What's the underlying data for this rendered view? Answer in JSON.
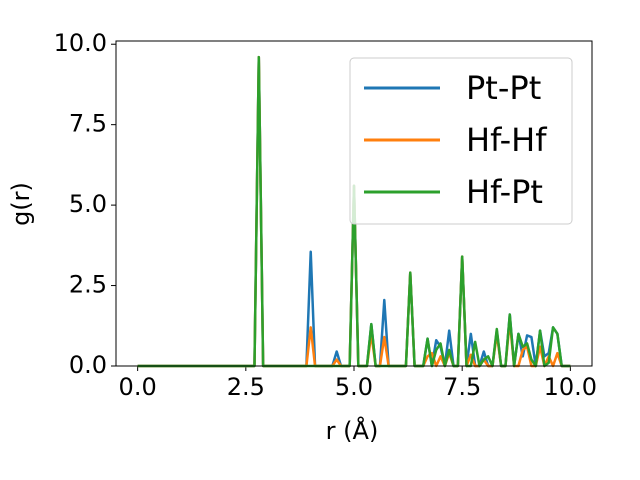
{
  "chart_data": {
    "type": "line",
    "xlabel": "r (Å)",
    "ylabel": "g(r)",
    "x": [
      0,
      0.1,
      0.2,
      0.3,
      0.4,
      0.5,
      0.6,
      0.7,
      0.8,
      0.9,
      1,
      1.1,
      1.2,
      1.3,
      1.4,
      1.5,
      1.6,
      1.7,
      1.8,
      1.9,
      2,
      2.1,
      2.2,
      2.3,
      2.4,
      2.5,
      2.6,
      2.7,
      2.8,
      2.9,
      3,
      3.1,
      3.2,
      3.3,
      3.4,
      3.5,
      3.6,
      3.7,
      3.8,
      3.9,
      4,
      4.1,
      4.2,
      4.3,
      4.4,
      4.5,
      4.6,
      4.7,
      4.8,
      4.9,
      5,
      5.1,
      5.2,
      5.3,
      5.4,
      5.5,
      5.6,
      5.7,
      5.8,
      5.9,
      6,
      6.1,
      6.2,
      6.3,
      6.4,
      6.5,
      6.6,
      6.7,
      6.8,
      6.9,
      7,
      7.1,
      7.2,
      7.3,
      7.4,
      7.5,
      7.6,
      7.7,
      7.8,
      7.9,
      8,
      8.1,
      8.2,
      8.3,
      8.4,
      8.5,
      8.6,
      8.7,
      8.8,
      8.9,
      9,
      9.1,
      9.2,
      9.3,
      9.4,
      9.5,
      9.6,
      9.7,
      9.8,
      9.9,
      10
    ],
    "series": [
      {
        "name": "Pt-Pt",
        "color": "#1f77b4",
        "values": [
          0,
          0,
          0,
          0,
          0,
          0,
          0,
          0,
          0,
          0,
          0,
          0,
          0,
          0,
          0,
          0,
          0,
          0,
          0,
          0,
          0,
          0,
          0,
          0,
          0,
          0,
          0,
          0,
          9.6,
          0,
          0,
          0,
          0,
          0,
          0,
          0,
          0,
          0,
          0,
          0,
          3.55,
          0,
          0,
          0,
          0,
          0,
          0.45,
          0,
          0,
          0,
          5.6,
          0,
          0,
          0,
          1.3,
          0,
          0,
          2.05,
          0,
          0,
          0,
          0,
          0,
          2.9,
          0,
          0,
          0,
          0.85,
          0,
          0.8,
          0.6,
          0,
          1.1,
          0,
          0,
          3.4,
          0,
          1.0,
          0,
          0,
          0.45,
          0,
          0,
          1.1,
          0,
          0,
          1.6,
          0,
          1.0,
          0.3,
          0.95,
          0.9,
          0,
          1.1,
          0.3,
          0.4,
          1.2,
          1.0,
          0,
          0,
          0
        ]
      },
      {
        "name": "Hf-Hf",
        "color": "#ff7f0e",
        "values": [
          0,
          0,
          0,
          0,
          0,
          0,
          0,
          0,
          0,
          0,
          0,
          0,
          0,
          0,
          0,
          0,
          0,
          0,
          0,
          0,
          0,
          0,
          0,
          0,
          0,
          0,
          0,
          0,
          9.6,
          0,
          0,
          0,
          0,
          0,
          0,
          0,
          0,
          0,
          0,
          0,
          1.2,
          0,
          0,
          0,
          0,
          0,
          0.2,
          0,
          0,
          0,
          5.6,
          0,
          0,
          0,
          1.0,
          0,
          0,
          0.9,
          0,
          0,
          0,
          0,
          0,
          2.9,
          0,
          0,
          0,
          0.3,
          0.4,
          0,
          0.3,
          0,
          0.4,
          0,
          0,
          3.4,
          0,
          0.35,
          0,
          0,
          0.2,
          0,
          0,
          1.0,
          0,
          0,
          1.4,
          0,
          0,
          0.5,
          0.6,
          0,
          0,
          0.6,
          0,
          0.3,
          0,
          0.4,
          0,
          0,
          0
        ]
      },
      {
        "name": "Hf-Pt",
        "color": "#2ca02c",
        "values": [
          0,
          0,
          0,
          0,
          0,
          0,
          0,
          0,
          0,
          0,
          0,
          0,
          0,
          0,
          0,
          0,
          0,
          0,
          0,
          0,
          0,
          0,
          0,
          0,
          0,
          0,
          0,
          0,
          9.6,
          0,
          0,
          0,
          0,
          0,
          0,
          0,
          0,
          0,
          0,
          0,
          0,
          0,
          0,
          0,
          0,
          0,
          0,
          0,
          0,
          0,
          5.6,
          0,
          0,
          0,
          1.3,
          0,
          0,
          0,
          0,
          0,
          0,
          0,
          0,
          2.9,
          0,
          0,
          0,
          0.85,
          0,
          0.5,
          0.7,
          0,
          0.5,
          0,
          0,
          3.4,
          0,
          0,
          0.75,
          0,
          0.2,
          0.3,
          0,
          1.15,
          0,
          0,
          1.6,
          0,
          1.0,
          0.6,
          0.7,
          0.2,
          0,
          1.1,
          0,
          0.1,
          1.2,
          1.0,
          0,
          0,
          0
        ]
      }
    ],
    "xlim": [
      -0.5,
      10.5
    ],
    "ylim": [
      0,
      10.1
    ],
    "xticks": [
      {
        "value": 0,
        "label": "0.0"
      },
      {
        "value": 2.5,
        "label": "2.5"
      },
      {
        "value": 5,
        "label": "5.0"
      },
      {
        "value": 7.5,
        "label": "7.5"
      },
      {
        "value": 10,
        "label": "10.0"
      }
    ],
    "yticks": [
      {
        "value": 0,
        "label": "0.0"
      },
      {
        "value": 2.5,
        "label": "2.5"
      },
      {
        "value": 5,
        "label": "5.0"
      },
      {
        "value": 7.5,
        "label": "7.5"
      },
      {
        "value": 10,
        "label": "10.0"
      }
    ],
    "legend": "upper right",
    "grid": false
  }
}
